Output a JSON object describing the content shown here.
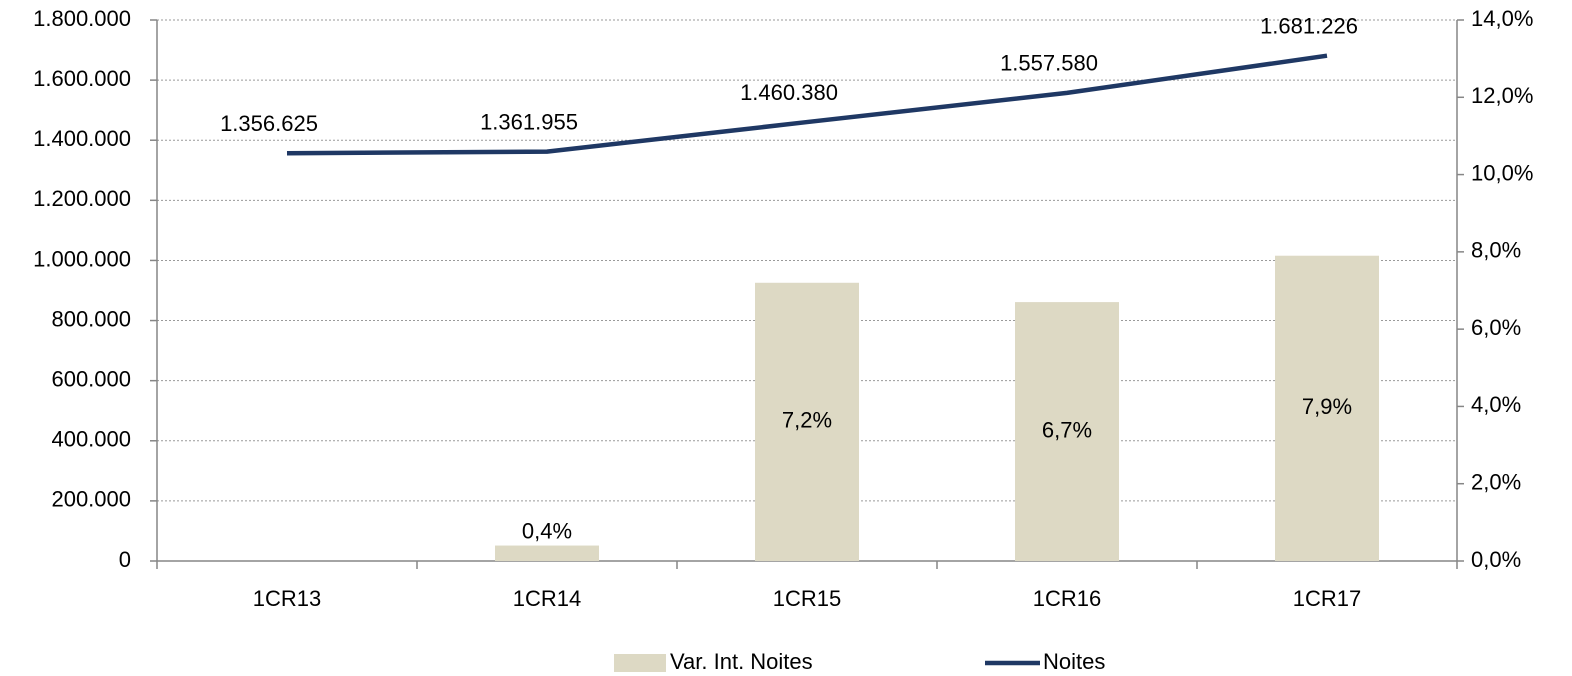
{
  "chart_data": {
    "type": "combo",
    "categories": [
      "1CR13",
      "1CR14",
      "1CR15",
      "1CR16",
      "1CR17"
    ],
    "series": [
      {
        "name": "Var. Int. Noites",
        "type": "bar",
        "axis": "y2",
        "color": "#ddd9c4",
        "values": [
          null,
          0.4,
          7.2,
          6.7,
          7.9
        ],
        "value_labels": [
          null,
          "0,4%",
          "7,2%",
          "6,7%",
          "7,9%"
        ]
      },
      {
        "name": "Noites",
        "type": "line",
        "axis": "y",
        "color": "#1f3864",
        "values": [
          1356625,
          1361955,
          1460380,
          1557580,
          1681226
        ],
        "value_labels": [
          "1.356.625",
          "1.361.955",
          "1.460.380",
          "1.557.580",
          "1.681.226"
        ]
      }
    ],
    "ylim": [
      0,
      1800000
    ],
    "yticks": [
      0,
      {
        "value": 200000,
        "label": "200.000"
      },
      {
        "value": 400000,
        "label": "400.000"
      },
      {
        "value": 600000,
        "label": "600.000"
      },
      {
        "value": 800000,
        "label": "800.000"
      },
      {
        "value": 1000000,
        "label": "1.000.000"
      },
      {
        "value": 1200000,
        "label": "1.200.000"
      },
      {
        "value": 1400000,
        "label": "1.400.000"
      },
      {
        "value": 1600000,
        "label": "1.600.000"
      },
      {
        "value": 1800000,
        "label": "1.800.000"
      }
    ],
    "y2lim": [
      0,
      14
    ],
    "y2ticks": [
      {
        "value": 0,
        "label": "0,0%"
      },
      {
        "value": 2,
        "label": "2,0%"
      },
      {
        "value": 4,
        "label": "4,0%"
      },
      {
        "value": 6,
        "label": "6,0%"
      },
      {
        "value": 8,
        "label": "8,0%"
      },
      {
        "value": 10,
        "label": "10,0%"
      },
      {
        "value": 12,
        "label": "12,0%"
      },
      {
        "value": 14,
        "label": "14,0%"
      }
    ],
    "grid": true,
    "legend": "bottom"
  }
}
